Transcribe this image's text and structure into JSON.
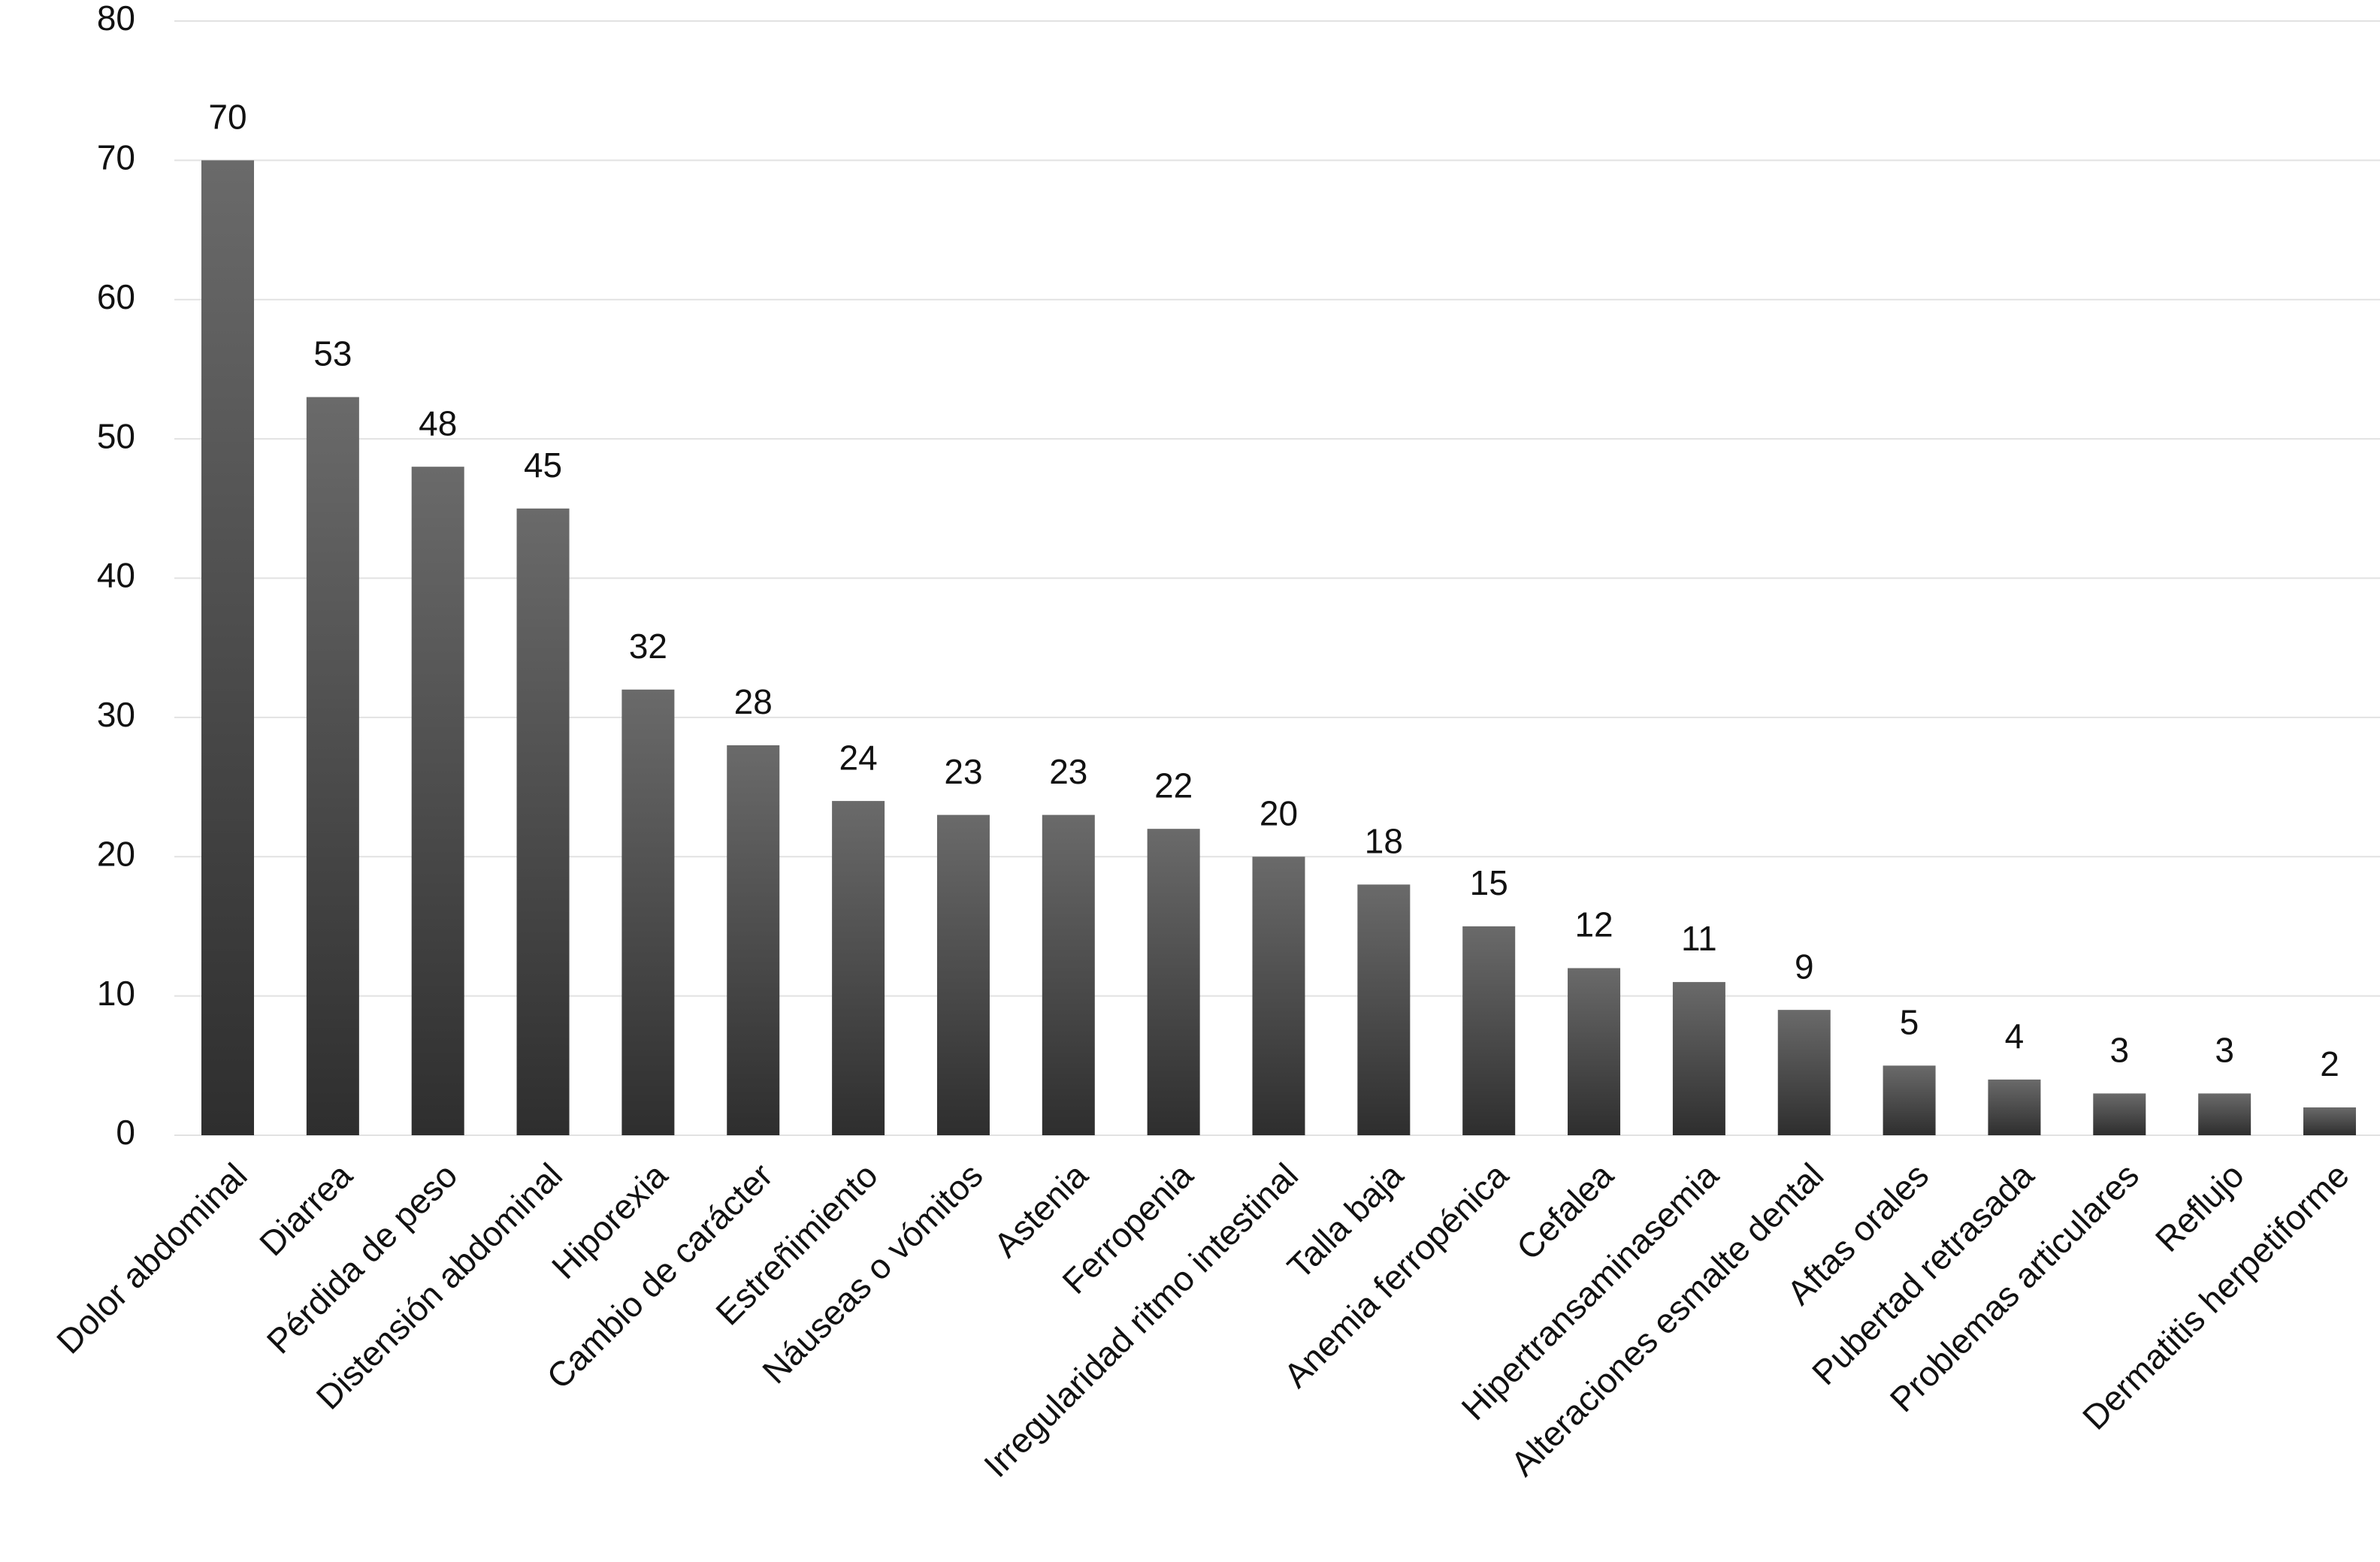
{
  "chart_data": {
    "type": "bar",
    "categories": [
      "Dolor abdominal",
      "Diarrea",
      "Pérdida de peso",
      "Distensión abdominal",
      "Hiporexia",
      "Cambio de carácter",
      "Estreñimiento",
      "Náuseas o vómitos",
      "Astenia",
      "Ferropenia",
      "Irregularidad ritmo intestinal",
      "Talla baja",
      "Anemia ferropénica",
      "Cefalea",
      "Hipertransaminasemia",
      "Alteraciones esmalte dental",
      "Aftas orales",
      "Pubertad retrasada",
      "Problemas articulares",
      "Reflujo",
      "Dermatitis herpetiforme"
    ],
    "values": [
      70,
      53,
      48,
      45,
      32,
      28,
      24,
      23,
      23,
      22,
      20,
      18,
      15,
      12,
      11,
      9,
      5,
      4,
      3,
      3,
      2
    ],
    "color": "#4a4a4a",
    "ylim": [
      0,
      80
    ],
    "yticks": [
      0,
      10,
      20,
      30,
      40,
      50,
      60,
      70,
      80
    ],
    "grid": true
  }
}
